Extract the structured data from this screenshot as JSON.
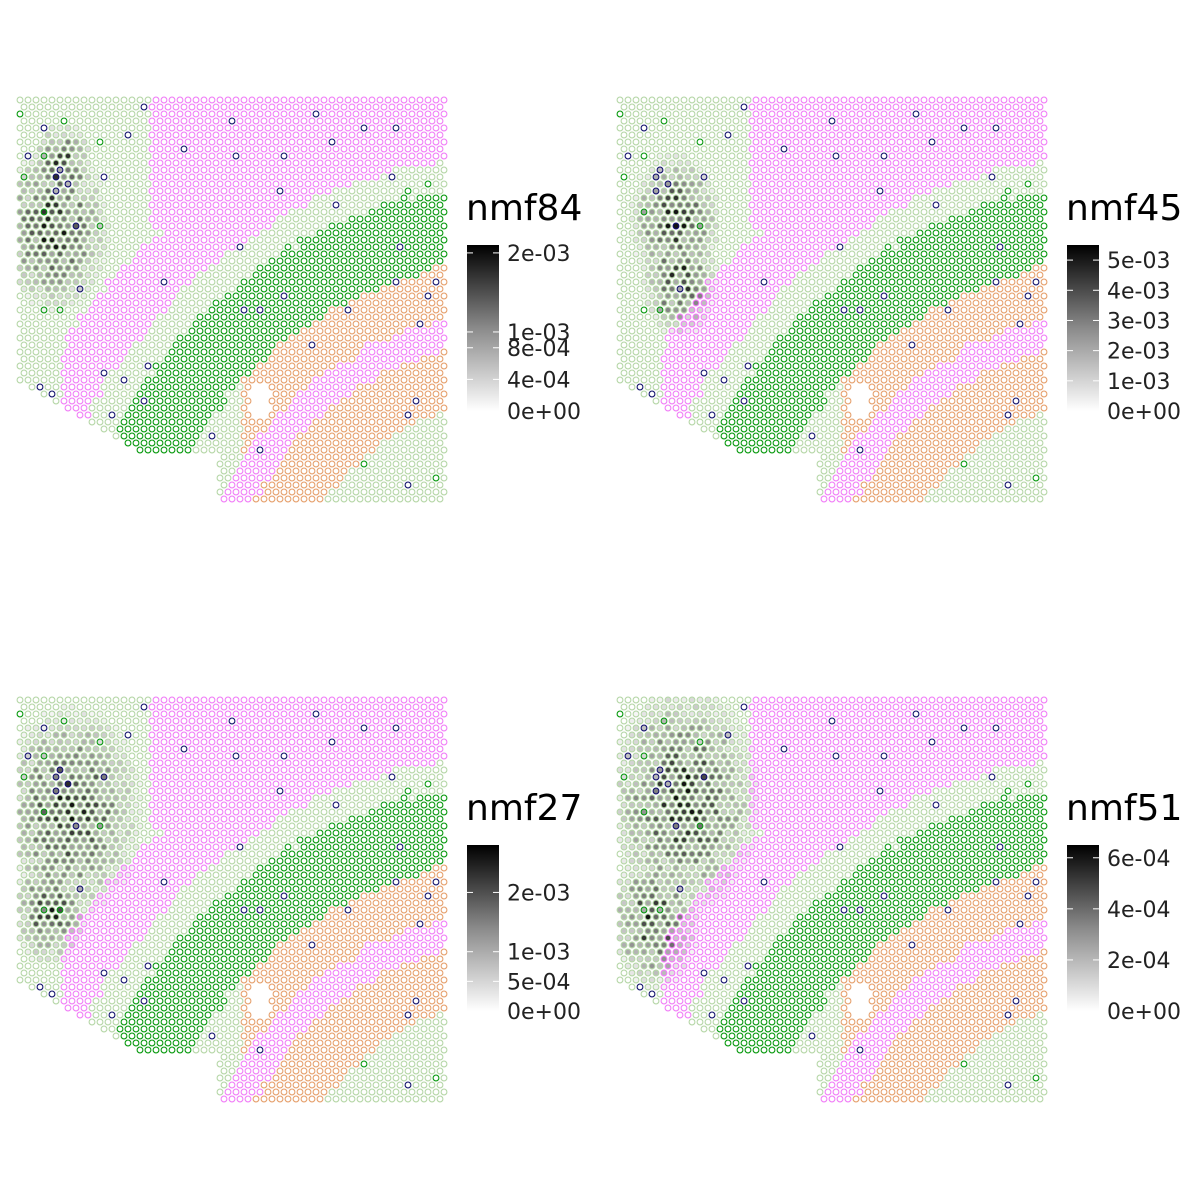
{
  "chart_data": [
    {
      "type": "scatter",
      "subtype": "spatial-spot-map",
      "legend_title": "nmf84",
      "colorbar": {
        "min": 0,
        "max": 0.0021,
        "ticks": [
          0,
          0.0004,
          0.0008,
          0.001,
          0.002
        ],
        "tick_labels": [
          "0e+00",
          "4e-04",
          "8e-04",
          "1e-03",
          "2e-03"
        ],
        "low_color": "#ffffff",
        "high_color": "#000000"
      },
      "hotspots": [
        [
          0.08,
          0.32,
          0.22
        ],
        [
          0.1,
          0.17,
          0.12
        ]
      ]
    },
    {
      "type": "scatter",
      "subtype": "spatial-spot-map",
      "legend_title": "nmf45",
      "colorbar": {
        "min": 0,
        "max": 0.0055,
        "ticks": [
          0,
          0.001,
          0.002,
          0.003,
          0.004,
          0.005
        ],
        "tick_labels": [
          "0e+00",
          "1e-03",
          "2e-03",
          "3e-03",
          "4e-03",
          "5e-03"
        ],
        "low_color": "#ffffff",
        "high_color": "#000000"
      },
      "hotspots": [
        [
          0.13,
          0.3,
          0.18
        ],
        [
          0.14,
          0.45,
          0.15
        ]
      ]
    },
    {
      "type": "scatter",
      "subtype": "spatial-spot-map",
      "legend_title": "nmf27",
      "colorbar": {
        "min": 0,
        "max": 0.0028,
        "ticks": [
          0,
          0.0005,
          0.001,
          0.002
        ],
        "tick_labels": [
          "0e+00",
          "5e-04",
          "1e-03",
          "2e-03"
        ],
        "low_color": "#ffffff",
        "high_color": "#000000"
      },
      "hotspots": [
        [
          0.12,
          0.28,
          0.28
        ],
        [
          0.07,
          0.52,
          0.15
        ]
      ]
    },
    {
      "type": "scatter",
      "subtype": "spatial-spot-map",
      "legend_title": "nmf51",
      "colorbar": {
        "min": 0,
        "max": 0.00065,
        "ticks": [
          0,
          0.0002,
          0.0004,
          0.0006
        ],
        "tick_labels": [
          "0e+00",
          "2e-04",
          "4e-04",
          "6e-04"
        ],
        "low_color": "#ffffff",
        "high_color": "#000000"
      },
      "hotspots": [
        [
          0.15,
          0.25,
          0.3
        ],
        [
          0.08,
          0.55,
          0.18
        ]
      ]
    }
  ],
  "cluster_colors": {
    "light_green": "#b6d7a8",
    "pink": "#f17ff7",
    "green": "#0a9a10",
    "orange": "#e6a16e",
    "navy": "#15156e"
  }
}
